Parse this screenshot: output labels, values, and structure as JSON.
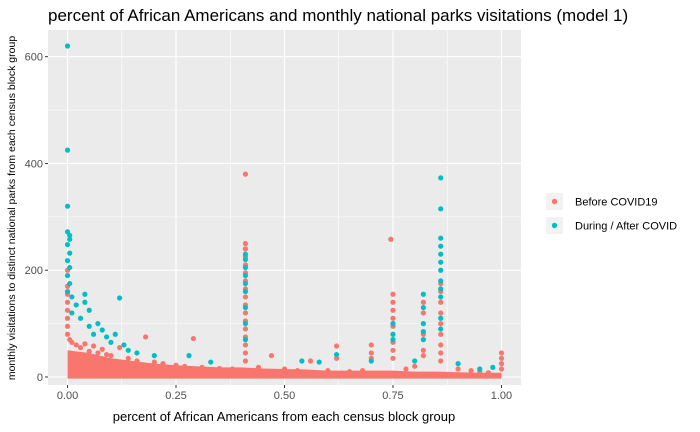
{
  "chart_data": {
    "type": "scatter",
    "title": "percent of African Americans and monthly national parks visitations (model 1)",
    "xlabel": "percent of African Americans from each census block group",
    "ylabel": "monthly visitations to distinct national parks from each census block group",
    "xlim": [
      -0.045,
      1.045
    ],
    "ylim": [
      -15,
      650
    ],
    "x_ticks": [
      "0.00",
      "0.25",
      "0.50",
      "0.75",
      "1.00"
    ],
    "x_tick_values": [
      0,
      0.25,
      0.5,
      0.75,
      1.0
    ],
    "y_ticks": [
      "0",
      "200",
      "400",
      "600"
    ],
    "y_tick_values": [
      0,
      200,
      400,
      600
    ],
    "grid": true,
    "legend_position": "right",
    "series": [
      {
        "name": "Before COVID19",
        "color": "#F8766D",
        "points": [
          [
            0.0,
            200
          ],
          [
            0.0,
            170
          ],
          [
            0.0,
            155
          ],
          [
            0.0,
            140
          ],
          [
            0.0,
            125
          ],
          [
            0.0,
            110
          ],
          [
            0.0,
            95
          ],
          [
            0.0,
            80
          ],
          [
            0.005,
            70
          ],
          [
            0.01,
            65
          ],
          [
            0.02,
            60
          ],
          [
            0.03,
            55
          ],
          [
            0.04,
            62
          ],
          [
            0.05,
            48
          ],
          [
            0.06,
            58
          ],
          [
            0.07,
            45
          ],
          [
            0.08,
            52
          ],
          [
            0.09,
            42
          ],
          [
            0.1,
            40
          ],
          [
            0.12,
            55
          ],
          [
            0.14,
            35
          ],
          [
            0.16,
            30
          ],
          [
            0.18,
            75
          ],
          [
            0.2,
            28
          ],
          [
            0.22,
            25
          ],
          [
            0.25,
            22
          ],
          [
            0.27,
            20
          ],
          [
            0.29,
            72
          ],
          [
            0.31,
            18
          ],
          [
            0.35,
            16
          ],
          [
            0.38,
            15
          ],
          [
            0.41,
            380
          ],
          [
            0.41,
            250
          ],
          [
            0.41,
            240
          ],
          [
            0.41,
            225
          ],
          [
            0.41,
            210
          ],
          [
            0.41,
            195
          ],
          [
            0.41,
            180
          ],
          [
            0.41,
            165
          ],
          [
            0.41,
            150
          ],
          [
            0.41,
            135
          ],
          [
            0.41,
            120
          ],
          [
            0.41,
            105
          ],
          [
            0.41,
            90
          ],
          [
            0.41,
            75
          ],
          [
            0.41,
            60
          ],
          [
            0.41,
            45
          ],
          [
            0.41,
            30
          ],
          [
            0.44,
            18
          ],
          [
            0.47,
            40
          ],
          [
            0.5,
            15
          ],
          [
            0.53,
            12
          ],
          [
            0.56,
            30
          ],
          [
            0.6,
            12
          ],
          [
            0.62,
            58
          ],
          [
            0.62,
            35
          ],
          [
            0.65,
            10
          ],
          [
            0.68,
            12
          ],
          [
            0.7,
            60
          ],
          [
            0.7,
            45
          ],
          [
            0.7,
            35
          ],
          [
            0.745,
            258
          ],
          [
            0.75,
            155
          ],
          [
            0.75,
            140
          ],
          [
            0.75,
            125
          ],
          [
            0.75,
            110
          ],
          [
            0.75,
            95
          ],
          [
            0.75,
            80
          ],
          [
            0.75,
            65
          ],
          [
            0.75,
            50
          ],
          [
            0.75,
            35
          ],
          [
            0.78,
            15
          ],
          [
            0.8,
            20
          ],
          [
            0.82,
            140
          ],
          [
            0.82,
            120
          ],
          [
            0.82,
            80
          ],
          [
            0.82,
            50
          ],
          [
            0.82,
            40
          ],
          [
            0.86,
            175
          ],
          [
            0.86,
            160
          ],
          [
            0.86,
            140
          ],
          [
            0.86,
            120
          ],
          [
            0.86,
            100
          ],
          [
            0.86,
            80
          ],
          [
            0.86,
            60
          ],
          [
            0.86,
            45
          ],
          [
            0.86,
            30
          ],
          [
            0.9,
            15
          ],
          [
            0.93,
            12
          ],
          [
            0.95,
            10
          ],
          [
            0.97,
            8
          ],
          [
            1.0,
            45
          ],
          [
            1.0,
            35
          ],
          [
            1.0,
            25
          ],
          [
            1.0,
            15
          ]
        ],
        "dense_band": [
          [
            0.0,
            50
          ],
          [
            0.05,
            45
          ],
          [
            0.1,
            35
          ],
          [
            0.15,
            30
          ],
          [
            0.2,
            25
          ],
          [
            0.25,
            22
          ],
          [
            0.3,
            20
          ],
          [
            0.35,
            18
          ],
          [
            0.4,
            18
          ],
          [
            0.45,
            16
          ],
          [
            0.5,
            15
          ],
          [
            0.55,
            14
          ],
          [
            0.6,
            12
          ],
          [
            0.65,
            12
          ],
          [
            0.7,
            12
          ],
          [
            0.75,
            12
          ],
          [
            0.8,
            10
          ],
          [
            0.85,
            10
          ],
          [
            0.9,
            9
          ],
          [
            0.95,
            8
          ],
          [
            1.0,
            8
          ]
        ]
      },
      {
        "name": "During / After COVID",
        "color": "#00BFC4",
        "points": [
          [
            0.0,
            620
          ],
          [
            0.0,
            425
          ],
          [
            0.0,
            320
          ],
          [
            0.0,
            272
          ],
          [
            0.005,
            265
          ],
          [
            0.005,
            258
          ],
          [
            0.0,
            248
          ],
          [
            0.005,
            232
          ],
          [
            0.0,
            218
          ],
          [
            0.005,
            205
          ],
          [
            0.0,
            190
          ],
          [
            0.005,
            175
          ],
          [
            0.0,
            160
          ],
          [
            0.01,
            150
          ],
          [
            0.02,
            135
          ],
          [
            0.01,
            120
          ],
          [
            0.03,
            110
          ],
          [
            0.04,
            155
          ],
          [
            0.04,
            140
          ],
          [
            0.05,
            125
          ],
          [
            0.05,
            95
          ],
          [
            0.06,
            80
          ],
          [
            0.07,
            100
          ],
          [
            0.08,
            88
          ],
          [
            0.09,
            75
          ],
          [
            0.1,
            65
          ],
          [
            0.11,
            80
          ],
          [
            0.12,
            148
          ],
          [
            0.13,
            60
          ],
          [
            0.14,
            50
          ],
          [
            0.16,
            45
          ],
          [
            0.2,
            40
          ],
          [
            0.28,
            40
          ],
          [
            0.33,
            28
          ],
          [
            0.41,
            230
          ],
          [
            0.41,
            220
          ],
          [
            0.41,
            205
          ],
          [
            0.41,
            190
          ],
          [
            0.41,
            175
          ],
          [
            0.41,
            160
          ],
          [
            0.41,
            130
          ],
          [
            0.41,
            100
          ],
          [
            0.41,
            70
          ],
          [
            0.54,
            30
          ],
          [
            0.58,
            28
          ],
          [
            0.62,
            42
          ],
          [
            0.7,
            30
          ],
          [
            0.75,
            100
          ],
          [
            0.75,
            80
          ],
          [
            0.75,
            70
          ],
          [
            0.8,
            30
          ],
          [
            0.82,
            155
          ],
          [
            0.82,
            130
          ],
          [
            0.82,
            100
          ],
          [
            0.82,
            85
          ],
          [
            0.82,
            70
          ],
          [
            0.86,
            373
          ],
          [
            0.86,
            315
          ],
          [
            0.86,
            260
          ],
          [
            0.86,
            245
          ],
          [
            0.86,
            230
          ],
          [
            0.86,
            215
          ],
          [
            0.86,
            200
          ],
          [
            0.86,
            180
          ],
          [
            0.86,
            165
          ],
          [
            0.86,
            150
          ],
          [
            0.86,
            110
          ],
          [
            0.86,
            90
          ],
          [
            0.9,
            25
          ],
          [
            0.95,
            15
          ],
          [
            0.98,
            18
          ]
        ]
      }
    ]
  }
}
